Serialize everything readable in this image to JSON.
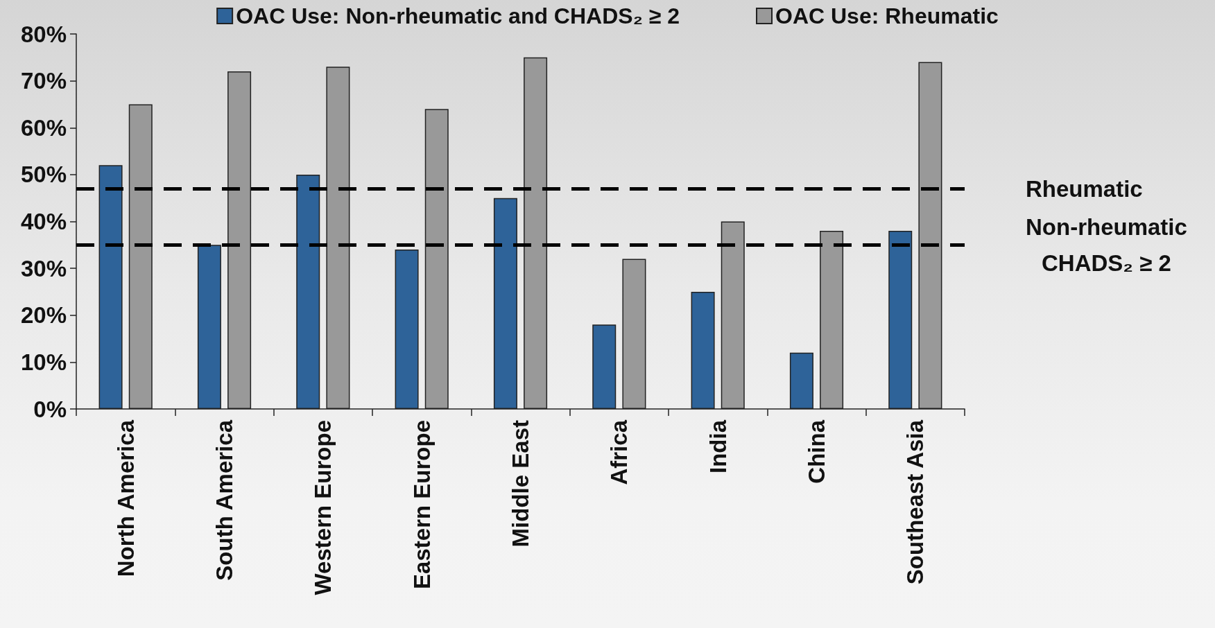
{
  "chart_data": {
    "type": "bar",
    "categories": [
      "North America",
      "South America",
      "Western Europe",
      "Eastern Europe",
      "Middle East",
      "Africa",
      "India",
      "China",
      "Southeast Asia"
    ],
    "series": [
      {
        "name": "OAC Use: Non-rheumatic and CHADS₂ ≥ 2",
        "color": "#2e6399",
        "values": [
          52,
          35,
          50,
          34,
          45,
          18,
          25,
          12,
          38
        ]
      },
      {
        "name": "OAC Use: Rheumatic",
        "color": "#999999",
        "values": [
          65,
          72,
          73,
          64,
          75,
          32,
          40,
          38,
          74
        ]
      }
    ],
    "ylim": [
      0,
      80
    ],
    "yticks": [
      {
        "value": 0,
        "label": "0%"
      },
      {
        "value": 10,
        "label": "10%"
      },
      {
        "value": 20,
        "label": "20%"
      },
      {
        "value": 30,
        "label": "30%"
      },
      {
        "value": 40,
        "label": "40%"
      },
      {
        "value": 50,
        "label": "50%"
      },
      {
        "value": 60,
        "label": "60%"
      },
      {
        "value": 70,
        "label": "70%"
      },
      {
        "value": 80,
        "label": "80%"
      }
    ],
    "grid": false,
    "legend": "top",
    "ref_lines": [
      {
        "axis": "y",
        "value": 47,
        "label": "Rheumatic",
        "color": "#000000",
        "line_style": "dashed"
      },
      {
        "axis": "y",
        "value": 35,
        "label": "Non-rheumatic CHADS₂ ≥ 2",
        "color": "#000000",
        "line_style": "dashed"
      }
    ]
  }
}
